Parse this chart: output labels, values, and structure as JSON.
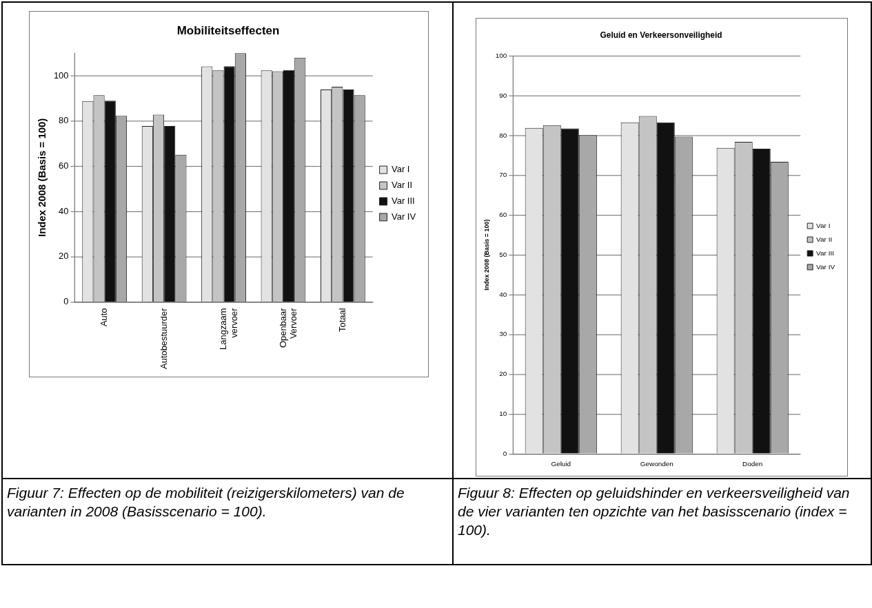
{
  "chart_data": [
    {
      "type": "bar",
      "title": "Mobiliteitseffecten",
      "ylabel": "Index 2008 (Basis = 100)",
      "categories": [
        "Auto",
        "Autobestuurder",
        "Langzaam vervoer",
        "Openbaar Vervoer",
        "Totaal"
      ],
      "series": [
        {
          "name": "Var I",
          "color": "#e2e2e2",
          "values": [
            88.8,
            77.8,
            104.1,
            102.4,
            93.9
          ]
        },
        {
          "name": "Var II",
          "color": "#c4c4c4",
          "values": [
            91.4,
            82.8,
            102.4,
            102,
            95.1
          ]
        },
        {
          "name": "Var III",
          "color": "#111111",
          "values": [
            89,
            77.8,
            104.2,
            102.5,
            93.9
          ]
        },
        {
          "name": "Var IV",
          "color": "#a8a8a8",
          "values": [
            82.3,
            65.1,
            110,
            108,
            91.4
          ]
        }
      ],
      "ylim": [
        0,
        110
      ],
      "yticks": [
        0,
        20,
        40,
        60,
        80,
        100
      ],
      "grid": "y",
      "legend": "right",
      "annotations": [
        "Figuur 7: Effecten op de mobiliteit (reizigerskilometers) van de varianten in 2008 (Basisscenario = 100)."
      ]
    },
    {
      "type": "bar",
      "title": "Geluid en Verkeersonveiligheid",
      "ylabel": "Index 2008 (Basis = 100)",
      "categories": [
        "Geluid",
        "Gewonden",
        "Doden"
      ],
      "series": [
        {
          "name": "Var I",
          "color": "#e2e2e2",
          "values": [
            81.9,
            83.3,
            76.9
          ]
        },
        {
          "name": "Var II",
          "color": "#c4c4c4",
          "values": [
            82.6,
            84.9,
            78.4
          ]
        },
        {
          "name": "Var III",
          "color": "#111111",
          "values": [
            81.8,
            83.3,
            76.7
          ]
        },
        {
          "name": "Var IV",
          "color": "#a8a8a8",
          "values": [
            80.1,
            79.7,
            73.4
          ]
        }
      ],
      "ylim": [
        0,
        100
      ],
      "yticks": [
        0,
        10,
        20,
        30,
        40,
        50,
        60,
        70,
        80,
        90,
        100
      ],
      "grid": "y",
      "legend": "right",
      "annotations": [
        "Figuur 8: Effecten op geluidshinder en verkeersveiligheid van de vier varianten ten opzichte van het basisscenario (index = 100)."
      ]
    }
  ]
}
